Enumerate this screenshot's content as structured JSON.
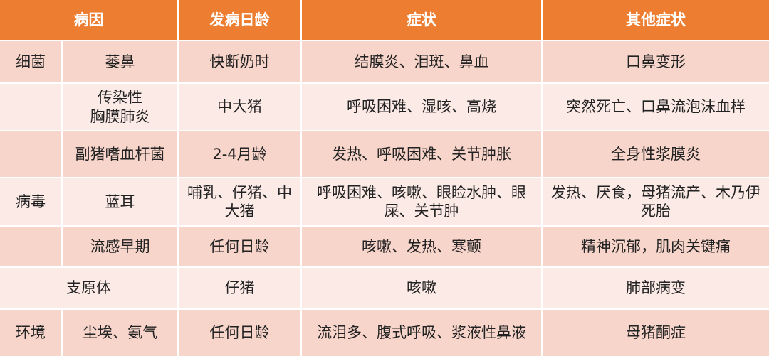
{
  "header": {
    "cause": "病因",
    "age": "发病日龄",
    "symptoms": "症状",
    "other": "其他症状"
  },
  "colors": {
    "header": "#ED7D31",
    "row_dark": "#F8D5CB",
    "row_light": "#FBEAE6"
  },
  "rows": [
    {
      "category": "细菌",
      "cause": "萎鼻",
      "age": "快断奶时",
      "symptoms": "结膜炎、泪斑、鼻血",
      "other": "口鼻变形"
    },
    {
      "category": "",
      "cause": "传染性\n胸膜肺炎",
      "age": "中大猪",
      "symptoms": "呼吸困难、湿咳、高烧",
      "other": "突然死亡、口鼻流泡沫血样"
    },
    {
      "category": "",
      "cause": "副猪嗜血杆菌",
      "age": "2-4月龄",
      "symptoms": "发热、呼吸困难、关节肿胀",
      "other": "全身性浆膜炎"
    },
    {
      "category": "病毒",
      "cause": "蓝耳",
      "age": "哺乳、仔猪、中大猪",
      "symptoms": "呼吸困难、咳嗽、眼睑水肿、眼屎、关节肿",
      "other": "发热、厌食，母猪流产、木乃伊死胎"
    },
    {
      "category": "",
      "cause": "流感早期",
      "age": "任何日龄",
      "symptoms": "咳嗽、发热、寒颤",
      "other": "精神沉郁，肌肉关键痛"
    },
    {
      "category": "支原体",
      "age": "仔猪",
      "symptoms": "咳嗽",
      "other": "肺部病变"
    },
    {
      "category": "环境",
      "cause": "尘埃、氨气",
      "age": "任何日龄",
      "symptoms": "流泪多、腹式呼吸、浆液性鼻液",
      "other": "母猪酮症"
    }
  ]
}
